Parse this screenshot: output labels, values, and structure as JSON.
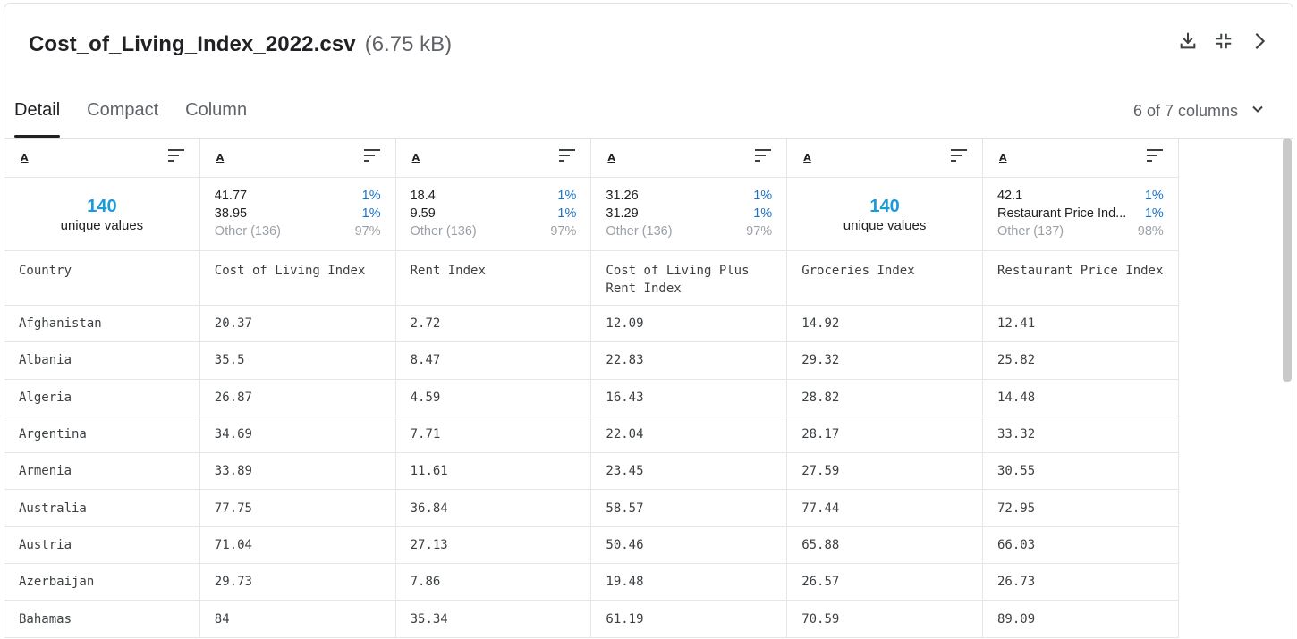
{
  "file": {
    "name": "Cost_of_Living_Index_2022.csv",
    "size": "(6.75 kB)"
  },
  "header_icons": [
    "download-icon",
    "collapse-icon",
    "chevron-right-icon"
  ],
  "tabs": [
    {
      "label": "Detail",
      "active": true
    },
    {
      "label": "Compact",
      "active": false
    },
    {
      "label": "Column",
      "active": false
    }
  ],
  "column_count": "6 of 7 columns",
  "columns": [
    {
      "name": "Country",
      "type_icon": "A",
      "stats": {
        "kind": "unique",
        "count": "140",
        "label": "unique values"
      }
    },
    {
      "name": "Cost of Living Index",
      "type_icon": "A",
      "stats": {
        "kind": "top",
        "top": [
          {
            "value": "41.77",
            "pct": "1%"
          },
          {
            "value": "38.95",
            "pct": "1%"
          }
        ],
        "other": {
          "value": "Other (136)",
          "pct": "97%"
        }
      }
    },
    {
      "name": "Rent Index",
      "type_icon": "A",
      "stats": {
        "kind": "top",
        "top": [
          {
            "value": "18.4",
            "pct": "1%"
          },
          {
            "value": "9.59",
            "pct": "1%"
          }
        ],
        "other": {
          "value": "Other (136)",
          "pct": "97%"
        }
      }
    },
    {
      "name": "Cost of Living Plus Rent Index",
      "type_icon": "A",
      "stats": {
        "kind": "top",
        "top": [
          {
            "value": "31.26",
            "pct": "1%"
          },
          {
            "value": "31.29",
            "pct": "1%"
          }
        ],
        "other": {
          "value": "Other (136)",
          "pct": "97%"
        }
      }
    },
    {
      "name": "Groceries Index",
      "type_icon": "A",
      "stats": {
        "kind": "unique",
        "count": "140",
        "label": "unique values"
      }
    },
    {
      "name": "Restaurant Price Index",
      "type_icon": "A",
      "stats": {
        "kind": "top",
        "top": [
          {
            "value": "42.1",
            "pct": "1%"
          },
          {
            "value": "Restaurant Price Ind...",
            "pct": "1%"
          }
        ],
        "other": {
          "value": "Other (137)",
          "pct": "98%"
        }
      }
    }
  ],
  "rows": [
    [
      "Afghanistan",
      "20.37",
      "2.72",
      "12.09",
      "14.92",
      "12.41"
    ],
    [
      "Albania",
      "35.5",
      "8.47",
      "22.83",
      "29.32",
      "25.82"
    ],
    [
      "Algeria",
      "26.87",
      "4.59",
      "16.43",
      "28.82",
      "14.48"
    ],
    [
      "Argentina",
      "34.69",
      "7.71",
      "22.04",
      "28.17",
      "33.32"
    ],
    [
      "Armenia",
      "33.89",
      "11.61",
      "23.45",
      "27.59",
      "30.55"
    ],
    [
      "Australia",
      "77.75",
      "36.84",
      "58.57",
      "77.44",
      "72.95"
    ],
    [
      "Austria",
      "71.04",
      "27.13",
      "50.46",
      "65.88",
      "66.03"
    ],
    [
      "Azerbaijan",
      "29.73",
      "7.86",
      "19.48",
      "26.57",
      "26.73"
    ],
    [
      "Bahamas",
      "84",
      "35.34",
      "61.19",
      "70.59",
      "89.09"
    ]
  ]
}
